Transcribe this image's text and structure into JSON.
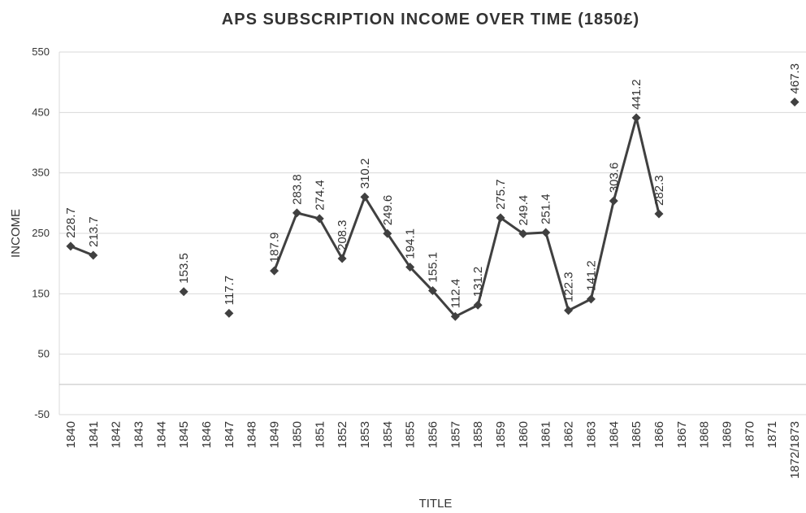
{
  "chart_data": {
    "type": "line",
    "title": "APS SUBSCRIPTION INCOME OVER TIME (1850£)",
    "x_label": "TITLE",
    "y_label": "INCOME",
    "categories": [
      "1840",
      "1841",
      "1842",
      "1843",
      "1844",
      "1845",
      "1846",
      "1847",
      "1848",
      "1849",
      "1850",
      "1851",
      "1852",
      "1853",
      "1854",
      "1855",
      "1856",
      "1857",
      "1858",
      "1859",
      "1860",
      "1861",
      "1862",
      "1863",
      "1864",
      "1865",
      "1866",
      "1867",
      "1868",
      "1869",
      "1870",
      "1871",
      "1872/1873"
    ],
    "values": [
      228.7,
      213.7,
      null,
      null,
      null,
      153.5,
      null,
      117.7,
      null,
      187.9,
      283.8,
      274.4,
      208.3,
      310.2,
      249.6,
      194.1,
      155.1,
      112.4,
      131.2,
      275.7,
      249.4,
      251.4,
      122.3,
      141.2,
      303.6,
      441.2,
      282.3,
      null,
      null,
      null,
      null,
      null,
      467.3
    ],
    "color": "#404040",
    "ylim": [
      -50,
      550
    ],
    "yticks": [
      -50,
      50,
      150,
      250,
      350,
      450,
      550
    ],
    "grid": true
  }
}
